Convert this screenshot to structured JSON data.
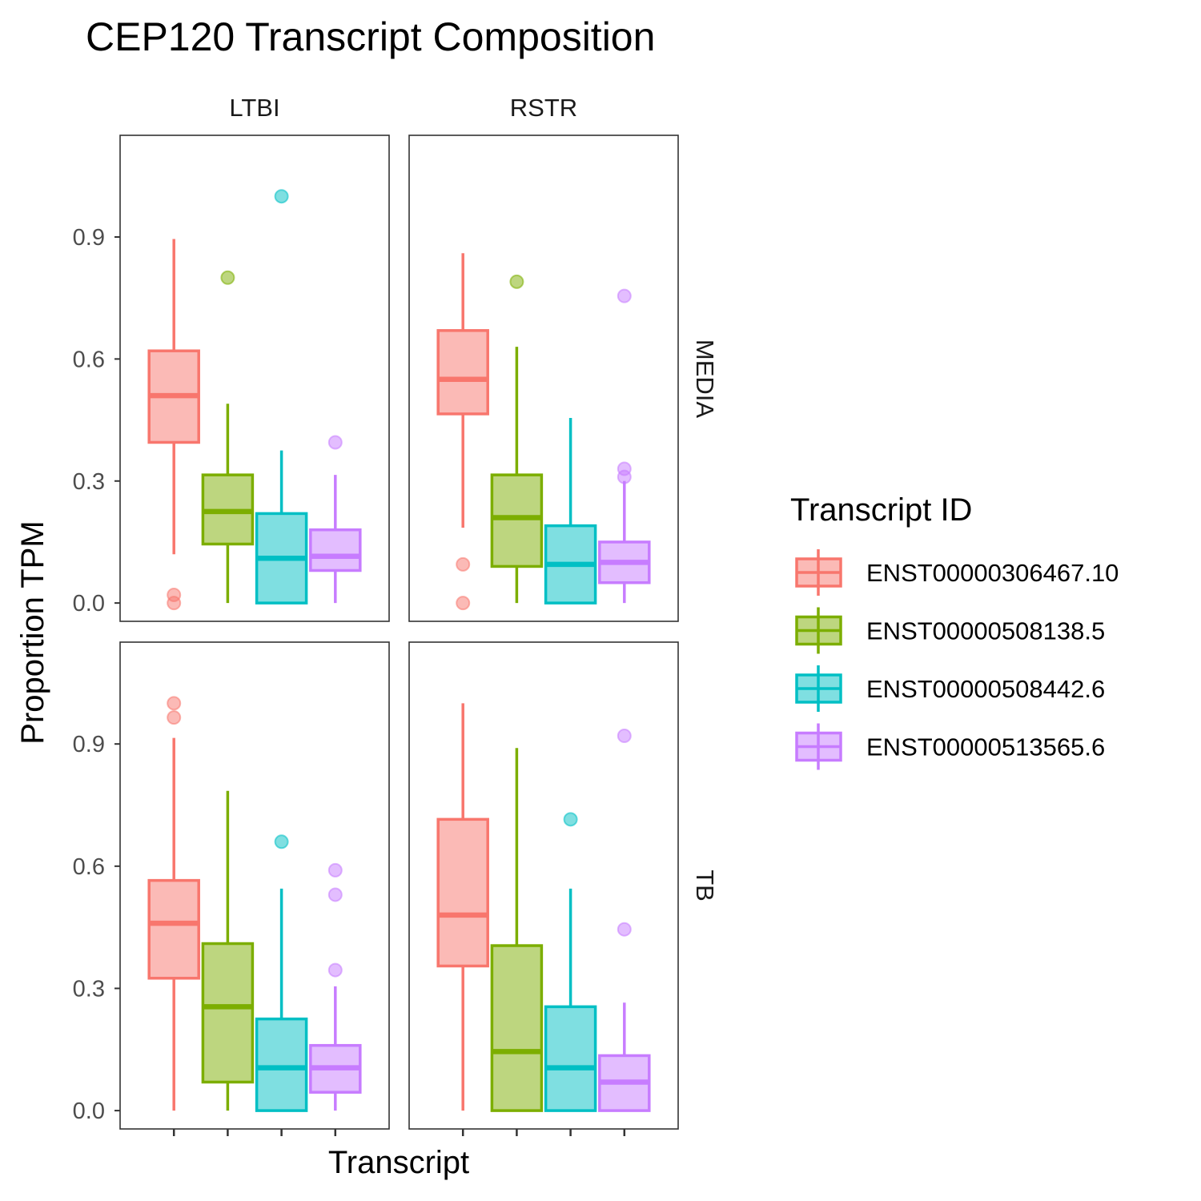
{
  "chart_data": {
    "type": "boxplot",
    "title": "CEP120 Transcript Composition",
    "xlabel": "Transcript",
    "ylabel": "Proportion TPM",
    "ylim": [
      -0.045,
      1.15
    ],
    "y_ticks": [
      0.0,
      0.3,
      0.6,
      0.9
    ],
    "y_tick_labels": [
      "0.0",
      "0.3",
      "0.6",
      "0.9"
    ],
    "facet_columns": [
      "LTBI",
      "RSTR"
    ],
    "facet_rows": [
      "MEDIA",
      "TB"
    ],
    "legend": {
      "title": "Transcript ID",
      "position": "right",
      "entries": [
        "ENST00000306467.10",
        "ENST00000508138.5",
        "ENST00000508442.6",
        "ENST00000513565.6"
      ]
    },
    "series_colors": [
      "#F8766D",
      "#7CAE00",
      "#00BFC4",
      "#C77CFF"
    ],
    "panels": [
      {
        "row": "MEDIA",
        "col": "LTBI",
        "boxes": [
          {
            "transcript": "ENST00000306467.10",
            "low": 0.12,
            "q1": 0.395,
            "median": 0.51,
            "q3": 0.62,
            "high": 0.895,
            "outliers": [
              0.02,
              0.0
            ]
          },
          {
            "transcript": "ENST00000508138.5",
            "low": 0.0,
            "q1": 0.145,
            "median": 0.225,
            "q3": 0.315,
            "high": 0.49,
            "outliers": [
              0.8
            ]
          },
          {
            "transcript": "ENST00000508442.6",
            "low": 0.0,
            "q1": 0.0,
            "median": 0.11,
            "q3": 0.22,
            "high": 0.375,
            "outliers": [
              1.0
            ]
          },
          {
            "transcript": "ENST00000513565.6",
            "low": 0.0,
            "q1": 0.08,
            "median": 0.115,
            "q3": 0.18,
            "high": 0.315,
            "outliers": [
              0.395
            ]
          }
        ]
      },
      {
        "row": "MEDIA",
        "col": "RSTR",
        "boxes": [
          {
            "transcript": "ENST00000306467.10",
            "low": 0.185,
            "q1": 0.465,
            "median": 0.55,
            "q3": 0.67,
            "high": 0.86,
            "outliers": [
              0.095,
              0.0
            ]
          },
          {
            "transcript": "ENST00000508138.5",
            "low": 0.0,
            "q1": 0.09,
            "median": 0.21,
            "q3": 0.315,
            "high": 0.63,
            "outliers": [
              0.79
            ]
          },
          {
            "transcript": "ENST00000508442.6",
            "low": 0.0,
            "q1": 0.0,
            "median": 0.095,
            "q3": 0.19,
            "high": 0.455,
            "outliers": []
          },
          {
            "transcript": "ENST00000513565.6",
            "low": 0.0,
            "q1": 0.05,
            "median": 0.1,
            "q3": 0.15,
            "high": 0.3,
            "outliers": [
              0.755,
              0.33,
              0.31
            ]
          }
        ]
      },
      {
        "row": "TB",
        "col": "LTBI",
        "boxes": [
          {
            "transcript": "ENST00000306467.10",
            "low": 0.0,
            "q1": 0.325,
            "median": 0.46,
            "q3": 0.565,
            "high": 0.915,
            "outliers": [
              1.0,
              0.965
            ]
          },
          {
            "transcript": "ENST00000508138.5",
            "low": 0.0,
            "q1": 0.07,
            "median": 0.255,
            "q3": 0.41,
            "high": 0.785,
            "outliers": []
          },
          {
            "transcript": "ENST00000508442.6",
            "low": 0.0,
            "q1": 0.0,
            "median": 0.105,
            "q3": 0.225,
            "high": 0.545,
            "outliers": [
              0.66
            ]
          },
          {
            "transcript": "ENST00000513565.6",
            "low": 0.0,
            "q1": 0.045,
            "median": 0.105,
            "q3": 0.16,
            "high": 0.305,
            "outliers": [
              0.59,
              0.53,
              0.345
            ]
          }
        ]
      },
      {
        "row": "TB",
        "col": "RSTR",
        "boxes": [
          {
            "transcript": "ENST00000306467.10",
            "low": 0.0,
            "q1": 0.355,
            "median": 0.48,
            "q3": 0.715,
            "high": 1.0,
            "outliers": []
          },
          {
            "transcript": "ENST00000508138.5",
            "low": 0.0,
            "q1": 0.0,
            "median": 0.145,
            "q3": 0.405,
            "high": 0.89,
            "outliers": []
          },
          {
            "transcript": "ENST00000508442.6",
            "low": 0.0,
            "q1": 0.0,
            "median": 0.105,
            "q3": 0.255,
            "high": 0.545,
            "outliers": [
              0.715
            ]
          },
          {
            "transcript": "ENST00000513565.6",
            "low": 0.0,
            "q1": 0.0,
            "median": 0.07,
            "q3": 0.135,
            "high": 0.265,
            "outliers": [
              0.92,
              0.445
            ]
          }
        ]
      }
    ]
  }
}
